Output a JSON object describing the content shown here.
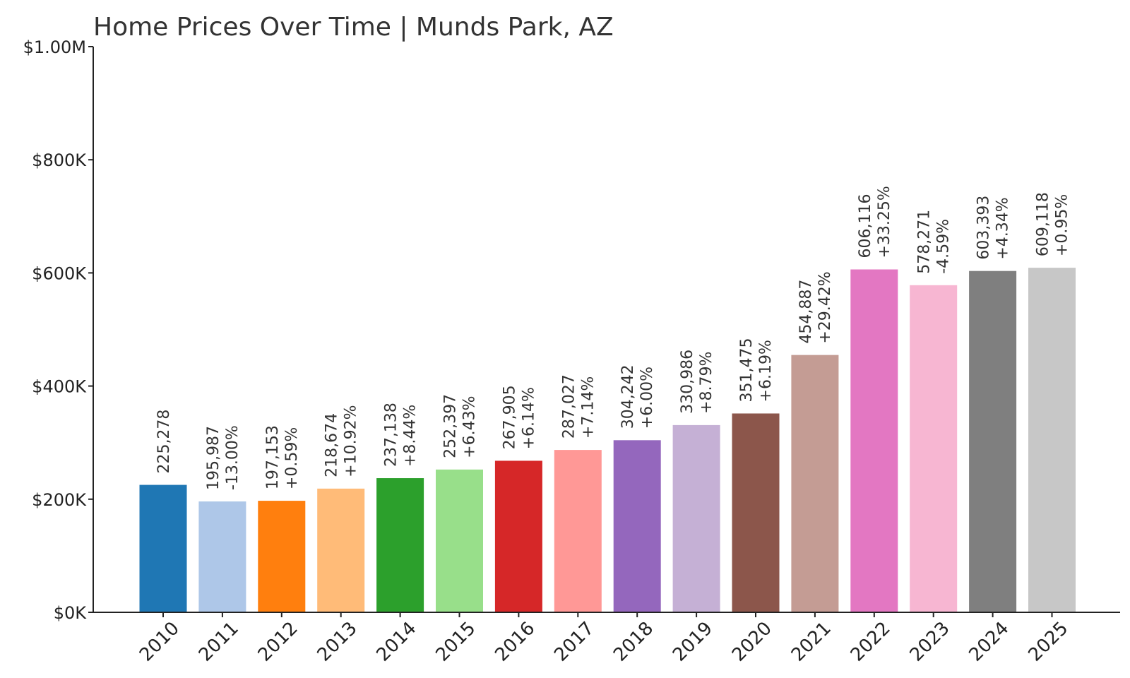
{
  "chart_data": {
    "type": "bar",
    "title": "Home Prices Over Time | Munds Park, AZ",
    "xlabel": "",
    "ylabel": "",
    "ylim": [
      0,
      1000000
    ],
    "yticks": [
      {
        "value": 0,
        "label": "$0K"
      },
      {
        "value": 200000,
        "label": "$200K"
      },
      {
        "value": 400000,
        "label": "$400K"
      },
      {
        "value": 600000,
        "label": "$600K"
      },
      {
        "value": 800000,
        "label": "$800K"
      },
      {
        "value": 1000000,
        "label": "$1.00M"
      }
    ],
    "categories": [
      "2010",
      "2011",
      "2012",
      "2013",
      "2014",
      "2015",
      "2016",
      "2017",
      "2018",
      "2019",
      "2020",
      "2021",
      "2022",
      "2023",
      "2024",
      "2025"
    ],
    "values": [
      225278,
      195987,
      197153,
      218674,
      237138,
      252397,
      267905,
      287027,
      304242,
      330986,
      351475,
      454887,
      606116,
      578271,
      603393,
      609118
    ],
    "value_labels": [
      "225,278",
      "195,987",
      "197,153",
      "218,674",
      "237,138",
      "252,397",
      "267,905",
      "287,027",
      "304,242",
      "330,986",
      "351,475",
      "454,887",
      "606,116",
      "578,271",
      "603,393",
      "609,118"
    ],
    "change_labels": [
      "",
      "-13.00%",
      "+0.59%",
      "+10.92%",
      "+8.44%",
      "+6.43%",
      "+6.14%",
      "+7.14%",
      "+6.00%",
      "+8.79%",
      "+6.19%",
      "+29.42%",
      "+33.25%",
      "-4.59%",
      "+4.34%",
      "+0.95%"
    ],
    "colors": [
      "#1f77b4",
      "#aec7e8",
      "#ff7f0e",
      "#ffbb78",
      "#2ca02c",
      "#98df8a",
      "#d62728",
      "#ff9896",
      "#9467bd",
      "#c5b0d5",
      "#8c564b",
      "#c49c94",
      "#e377c2",
      "#f7b6d2",
      "#7f7f7f",
      "#c7c7c7"
    ]
  }
}
